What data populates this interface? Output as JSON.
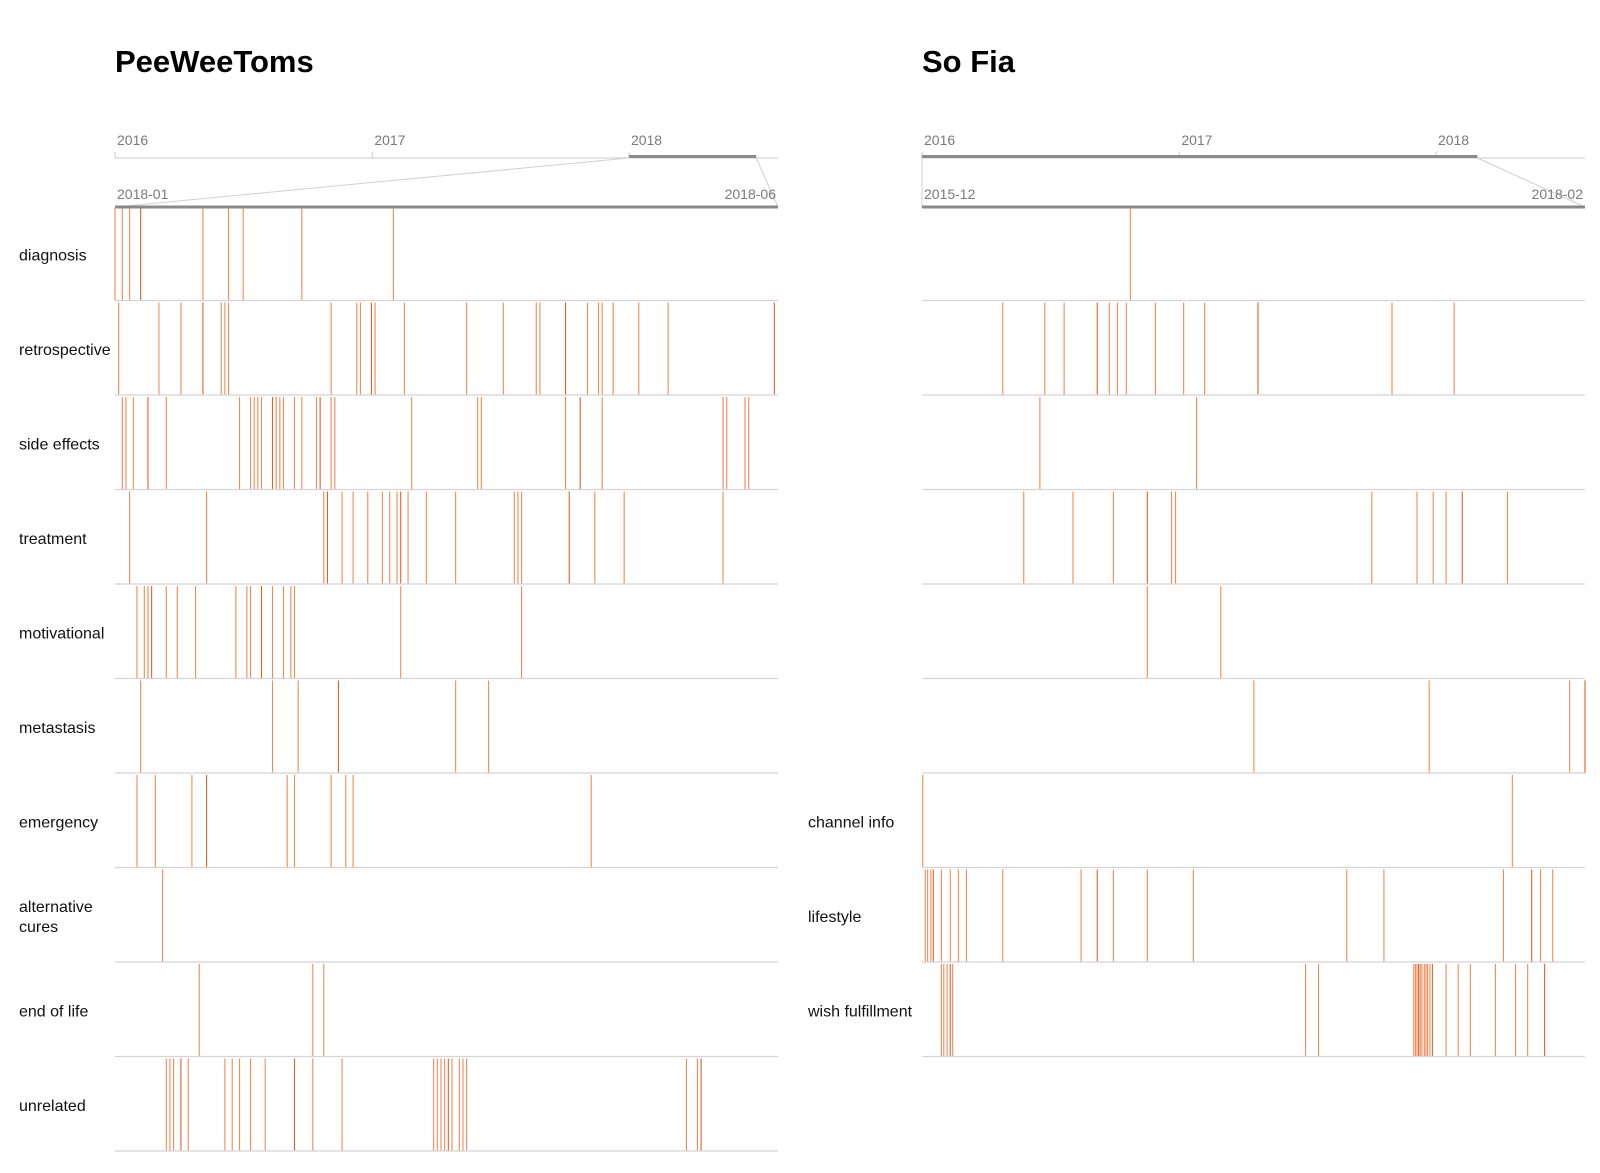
{
  "colors": {
    "event": "#f08a57",
    "event_dark": "#d8642a",
    "brush": "#8a8a8a",
    "axis": "#cccccc",
    "separator": "#d4d4d4",
    "label": "#111111",
    "tick": "#7a7a7a"
  },
  "chart_data": [
    {
      "type": "timeline",
      "title": "PeeWeeToms",
      "overview_axis": {
        "ticks": [
          "2016",
          "2017",
          "2018"
        ],
        "range": [
          "2016-01",
          "2018-08"
        ]
      },
      "brush_selection": [
        "2018-01",
        "2018-07"
      ],
      "detail_axis": {
        "start_label": "2018-01",
        "end_label": "2018-06"
      },
      "detail_domain": [
        "2018-01-01",
        "2018-07-01"
      ],
      "rows": [
        {
          "label": "diagnosis",
          "events": [
            "2018-01-01",
            "2018-01-03",
            "2018-01-05",
            "2018-01-08",
            "2018-01-25",
            "2018-02-01",
            "2018-02-05",
            "2018-02-21",
            "2018-03-18"
          ]
        },
        {
          "label": "retrospective",
          "events": [
            "2018-01-02",
            "2018-01-13",
            "2018-01-19",
            "2018-01-25",
            "2018-01-30",
            "2018-01-31",
            "2018-02-01",
            "2018-02-29",
            "2018-03-08",
            "2018-03-09",
            "2018-03-12",
            "2018-03-13",
            "2018-03-21",
            "2018-04-07",
            "2018-04-17",
            "2018-04-26",
            "2018-04-27",
            "2018-05-04",
            "2018-05-10",
            "2018-05-13",
            "2018-05-14",
            "2018-05-17",
            "2018-05-24",
            "2018-06-01",
            "2018-06-30"
          ]
        },
        {
          "label": "side effects",
          "events": [
            "2018-01-03",
            "2018-01-04",
            "2018-01-06",
            "2018-01-10",
            "2018-01-15",
            "2018-02-04",
            "2018-02-07",
            "2018-02-08",
            "2018-02-09",
            "2018-02-10",
            "2018-02-13",
            "2018-02-14",
            "2018-02-15",
            "2018-02-16",
            "2018-02-19",
            "2018-02-21",
            "2018-02-25",
            "2018-02-26",
            "2018-03-01",
            "2018-03-02",
            "2018-03-23",
            "2018-04-10",
            "2018-04-11",
            "2018-05-04",
            "2018-05-08",
            "2018-05-14",
            "2018-06-16",
            "2018-06-17",
            "2018-06-22",
            "2018-06-23"
          ]
        },
        {
          "label": "treatment",
          "events": [
            "2018-01-05",
            "2018-01-26",
            "2018-02-27",
            "2018-02-28",
            "2018-03-04",
            "2018-03-07",
            "2018-03-11",
            "2018-03-15",
            "2018-03-17",
            "2018-03-19",
            "2018-03-20",
            "2018-03-22",
            "2018-03-27",
            "2018-04-04",
            "2018-04-20",
            "2018-04-21",
            "2018-04-22",
            "2018-05-05",
            "2018-05-12",
            "2018-05-20",
            "2018-06-16"
          ]
        },
        {
          "label": "motivational",
          "events": [
            "2018-01-07",
            "2018-01-09",
            "2018-01-10",
            "2018-01-11",
            "2018-01-15",
            "2018-01-18",
            "2018-01-23",
            "2018-02-03",
            "2018-02-06",
            "2018-02-07",
            "2018-02-10",
            "2018-02-13",
            "2018-02-16",
            "2018-02-18",
            "2018-02-19",
            "2018-03-20",
            "2018-04-22"
          ]
        },
        {
          "label": "metastasis",
          "events": [
            "2018-01-08",
            "2018-02-13",
            "2018-02-20",
            "2018-03-03",
            "2018-04-04",
            "2018-04-13"
          ]
        },
        {
          "label": "emergency",
          "events": [
            "2018-01-07",
            "2018-01-12",
            "2018-01-22",
            "2018-01-26",
            "2018-02-17",
            "2018-02-19",
            "2018-03-01",
            "2018-03-05",
            "2018-03-07",
            "2018-05-11"
          ]
        },
        {
          "label": "alternative cures",
          "events": [
            "2018-01-14"
          ]
        },
        {
          "label": "end of life",
          "events": [
            "2018-01-24",
            "2018-02-24",
            "2018-02-27"
          ]
        },
        {
          "label": "unrelated",
          "events": [
            "2018-01-15",
            "2018-01-16",
            "2018-01-17",
            "2018-01-19",
            "2018-01-21",
            "2018-01-31",
            "2018-02-02",
            "2018-02-04",
            "2018-02-07",
            "2018-02-11",
            "2018-02-19",
            "2018-02-24",
            "2018-03-04",
            "2018-03-29",
            "2018-03-30",
            "2018-03-31",
            "2018-04-01",
            "2018-04-02",
            "2018-04-03",
            "2018-04-05",
            "2018-04-06",
            "2018-04-07",
            "2018-06-06",
            "2018-06-09",
            "2018-06-10"
          ]
        }
      ]
    },
    {
      "type": "timeline",
      "title": "So Fia",
      "overview_axis": {
        "ticks": [
          "2016",
          "2017",
          "2018"
        ],
        "range": [
          "2016-01",
          "2018-08"
        ]
      },
      "brush_selection": [
        "2016-01",
        "2018-03"
      ],
      "detail_axis": {
        "start_label": "2015-12",
        "end_label": "2018-02"
      },
      "detail_domain": [
        "2015-12-01",
        "2018-03-01"
      ],
      "rows": [
        {
          "label": "",
          "events": [
            "2016-08-15"
          ]
        },
        {
          "label": "",
          "events": [
            "2016-03-10",
            "2016-05-01",
            "2016-05-25",
            "2016-07-05",
            "2016-07-20",
            "2016-07-30",
            "2016-08-10",
            "2016-09-15",
            "2016-10-20",
            "2016-11-15",
            "2017-01-20",
            "2017-07-05",
            "2017-09-20"
          ]
        },
        {
          "label": "",
          "events": [
            "2016-04-25",
            "2016-11-05"
          ]
        },
        {
          "label": "",
          "events": [
            "2016-04-05",
            "2016-06-05",
            "2016-07-25",
            "2016-09-05",
            "2016-10-05",
            "2016-10-10",
            "2017-06-10",
            "2017-08-05",
            "2017-08-25",
            "2017-09-10",
            "2017-09-30",
            "2017-11-25"
          ]
        },
        {
          "label": "",
          "events": [
            "2016-09-05",
            "2016-12-05"
          ]
        },
        {
          "label": "",
          "events": [
            "2017-01-15",
            "2017-08-20",
            "2018-02-10",
            "2018-03-01"
          ]
        },
        {
          "label": "channel info",
          "events": [
            "2015-12-02",
            "2017-12-01"
          ]
        },
        {
          "label": "lifestyle",
          "events": [
            "2015-12-05",
            "2015-12-08",
            "2015-12-12",
            "2015-12-15",
            "2015-12-25",
            "2016-01-05",
            "2016-01-15",
            "2016-01-25",
            "2016-03-10",
            "2016-06-15",
            "2016-07-05",
            "2016-07-25",
            "2016-09-05",
            "2016-11-01",
            "2017-05-10",
            "2017-06-25",
            "2017-11-20",
            "2017-12-25",
            "2018-01-05",
            "2018-01-20"
          ]
        },
        {
          "label": "wish fulfillment",
          "events": [
            "2015-12-25",
            "2015-12-28",
            "2016-01-01",
            "2016-01-05",
            "2016-01-08",
            "2017-03-20",
            "2017-04-05",
            "2017-08-01",
            "2017-08-03",
            "2017-08-05",
            "2017-08-07",
            "2017-08-09",
            "2017-08-11",
            "2017-08-14",
            "2017-08-16",
            "2017-08-18",
            "2017-08-21",
            "2017-08-24",
            "2017-09-10",
            "2017-09-25",
            "2017-10-10",
            "2017-11-10",
            "2017-12-05",
            "2017-12-20",
            "2018-01-10"
          ]
        }
      ]
    }
  ]
}
